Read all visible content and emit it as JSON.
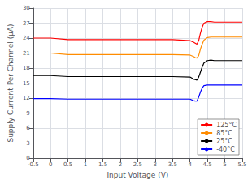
{
  "chart_data": {
    "type": "line",
    "title": "",
    "xlabel": "Input Voltage (V)",
    "ylabel": "Supply Current Per Channel (μA)",
    "xlim": [
      -0.5,
      5.5
    ],
    "ylim": [
      0,
      30
    ],
    "xticks": [
      -0.5,
      0,
      0.5,
      1,
      1.5,
      2,
      2.5,
      3,
      3.5,
      4,
      4.5,
      5,
      5.5
    ],
    "yticks": [
      0,
      3,
      6,
      9,
      12,
      15,
      18,
      21,
      24,
      27,
      30
    ],
    "grid": true,
    "legend": "lower right",
    "series": [
      {
        "name": "125°C",
        "color": "#ff0000",
        "x": [
          -0.5,
          0.0,
          0.5,
          1.0,
          1.5,
          2.0,
          2.5,
          3.0,
          3.5,
          4.0,
          4.1,
          4.15,
          4.2,
          4.25,
          4.3,
          4.35,
          4.4,
          4.5,
          4.6,
          4.7,
          4.8,
          5.0,
          5.5
        ],
        "values": [
          24.0,
          24.0,
          23.7,
          23.7,
          23.7,
          23.7,
          23.7,
          23.7,
          23.7,
          23.5,
          23.2,
          23.0,
          22.8,
          23.5,
          25.0,
          26.2,
          27.0,
          27.3,
          27.3,
          27.2,
          27.2,
          27.2,
          27.2
        ]
      },
      {
        "name": "85°C",
        "color": "#ff8c00",
        "x": [
          -0.5,
          0.0,
          0.5,
          1.0,
          1.5,
          2.0,
          2.5,
          3.0,
          3.5,
          4.0,
          4.1,
          4.15,
          4.2,
          4.25,
          4.3,
          4.35,
          4.4,
          4.5,
          4.6,
          4.7,
          4.8,
          5.0,
          5.5
        ],
        "values": [
          21.0,
          21.0,
          20.7,
          20.7,
          20.7,
          20.7,
          20.7,
          20.7,
          20.7,
          20.6,
          20.3,
          20.1,
          20.0,
          20.5,
          21.8,
          22.8,
          23.6,
          24.1,
          24.2,
          24.2,
          24.2,
          24.2,
          24.2
        ]
      },
      {
        "name": "25°C",
        "color": "#000000",
        "x": [
          -0.5,
          0.0,
          0.5,
          1.0,
          1.5,
          2.0,
          2.5,
          3.0,
          3.5,
          4.0,
          4.1,
          4.15,
          4.2,
          4.25,
          4.3,
          4.35,
          4.4,
          4.5,
          4.6,
          4.7,
          4.8,
          5.0,
          5.5
        ],
        "values": [
          16.5,
          16.5,
          16.3,
          16.3,
          16.3,
          16.3,
          16.3,
          16.3,
          16.3,
          16.2,
          15.8,
          15.7,
          15.6,
          16.2,
          17.2,
          18.2,
          19.0,
          19.5,
          19.6,
          19.5,
          19.5,
          19.5,
          19.5
        ]
      },
      {
        "name": "-40°C",
        "color": "#0000ff",
        "x": [
          -0.5,
          0.0,
          0.5,
          1.0,
          1.5,
          2.0,
          2.5,
          3.0,
          3.5,
          4.0,
          4.1,
          4.15,
          4.2,
          4.25,
          4.3,
          4.35,
          4.4,
          4.5,
          4.6,
          4.7,
          4.8,
          5.0,
          5.5
        ],
        "values": [
          11.9,
          11.9,
          11.8,
          11.8,
          11.8,
          11.8,
          11.8,
          11.8,
          11.8,
          11.8,
          11.5,
          11.4,
          11.4,
          12.2,
          13.2,
          14.0,
          14.5,
          14.6,
          14.6,
          14.6,
          14.6,
          14.6,
          14.6
        ]
      }
    ]
  }
}
